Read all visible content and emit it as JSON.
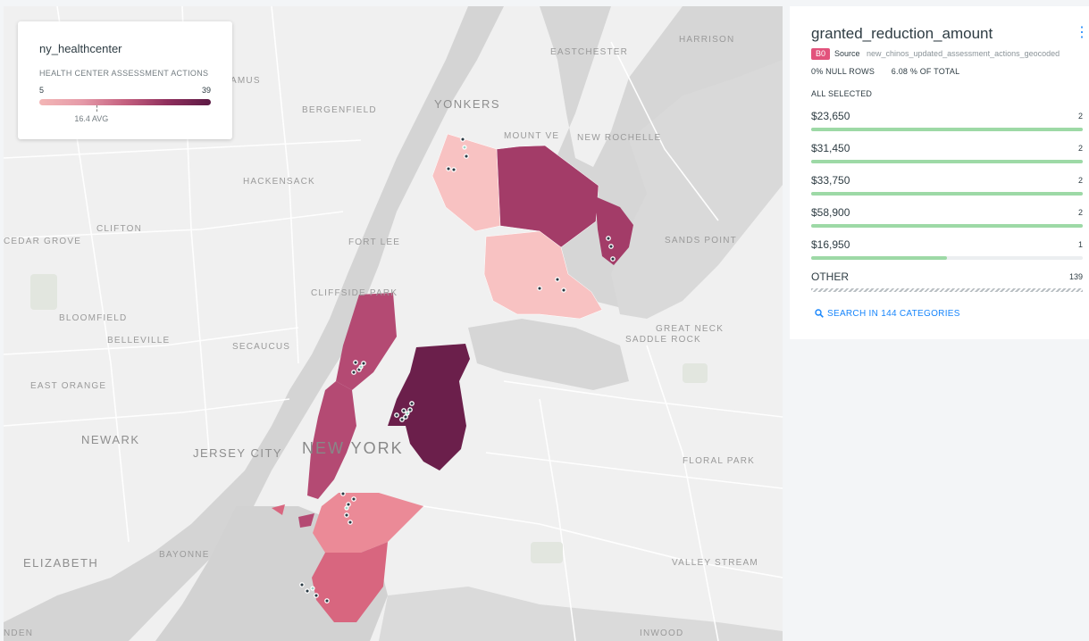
{
  "legend": {
    "title": "ny_healthcenter",
    "subtitle": "HEALTH CENTER ASSESSMENT ACTIONS",
    "min": "5",
    "max": "39",
    "avg_label": "16.4 AVG",
    "avg_value": 16.4
  },
  "widget": {
    "title": "granted_reduction_amount",
    "menu_icon": "kebab-icon",
    "badge": "B0",
    "source_label": "Source",
    "source_name": "new_chinos_updated_assessment_actions_geocoded",
    "null_rows": "0% NULL ROWS",
    "pct_total": "6.08 % OF TOTAL",
    "all_selected": "ALL SELECTED",
    "rows": [
      {
        "label": "$23,650",
        "count": "2",
        "fraction": 1.0
      },
      {
        "label": "$31,450",
        "count": "2",
        "fraction": 1.0
      },
      {
        "label": "$33,750",
        "count": "2",
        "fraction": 1.0
      },
      {
        "label": "$58,900",
        "count": "2",
        "fraction": 1.0
      },
      {
        "label": "$16,950",
        "count": "1",
        "fraction": 0.5
      }
    ],
    "other": {
      "label": "OTHER",
      "count": "139"
    },
    "search": "SEARCH IN 144 CATEGORIES",
    "search_icon": "search-icon"
  },
  "map": {
    "labels": [
      "HARRISON",
      "EASTCHESTER",
      "YONKERS",
      "MOUNT VE",
      "NEW ROCHELLE",
      "BERGENFIELD",
      "HACKENSACK",
      "CEDAR GROVE",
      "CLIFTON",
      "FORT LEE",
      "SANDS POINT",
      "CLIFFSIDE PARK",
      "BLOOMFIELD",
      "BELLEVILLE",
      "SECAUCUS",
      "GREAT NECK",
      "SADDLE ROCK",
      "EAST ORANGE",
      "NEWARK",
      "JERSEY CITY",
      "NEW YORK",
      "FLORAL PARK",
      "BAYONNE",
      "ELIZABETH",
      "VALLEY STREAM",
      "INWOOD",
      "NDEN",
      "AMUS"
    ],
    "colors": {
      "ramp_low": "#f3b6b6",
      "ramp_high": "#5c1a44",
      "bar_fill": "#9dd9a6",
      "accent": "#1785fb",
      "badge": "#e2527c"
    }
  }
}
